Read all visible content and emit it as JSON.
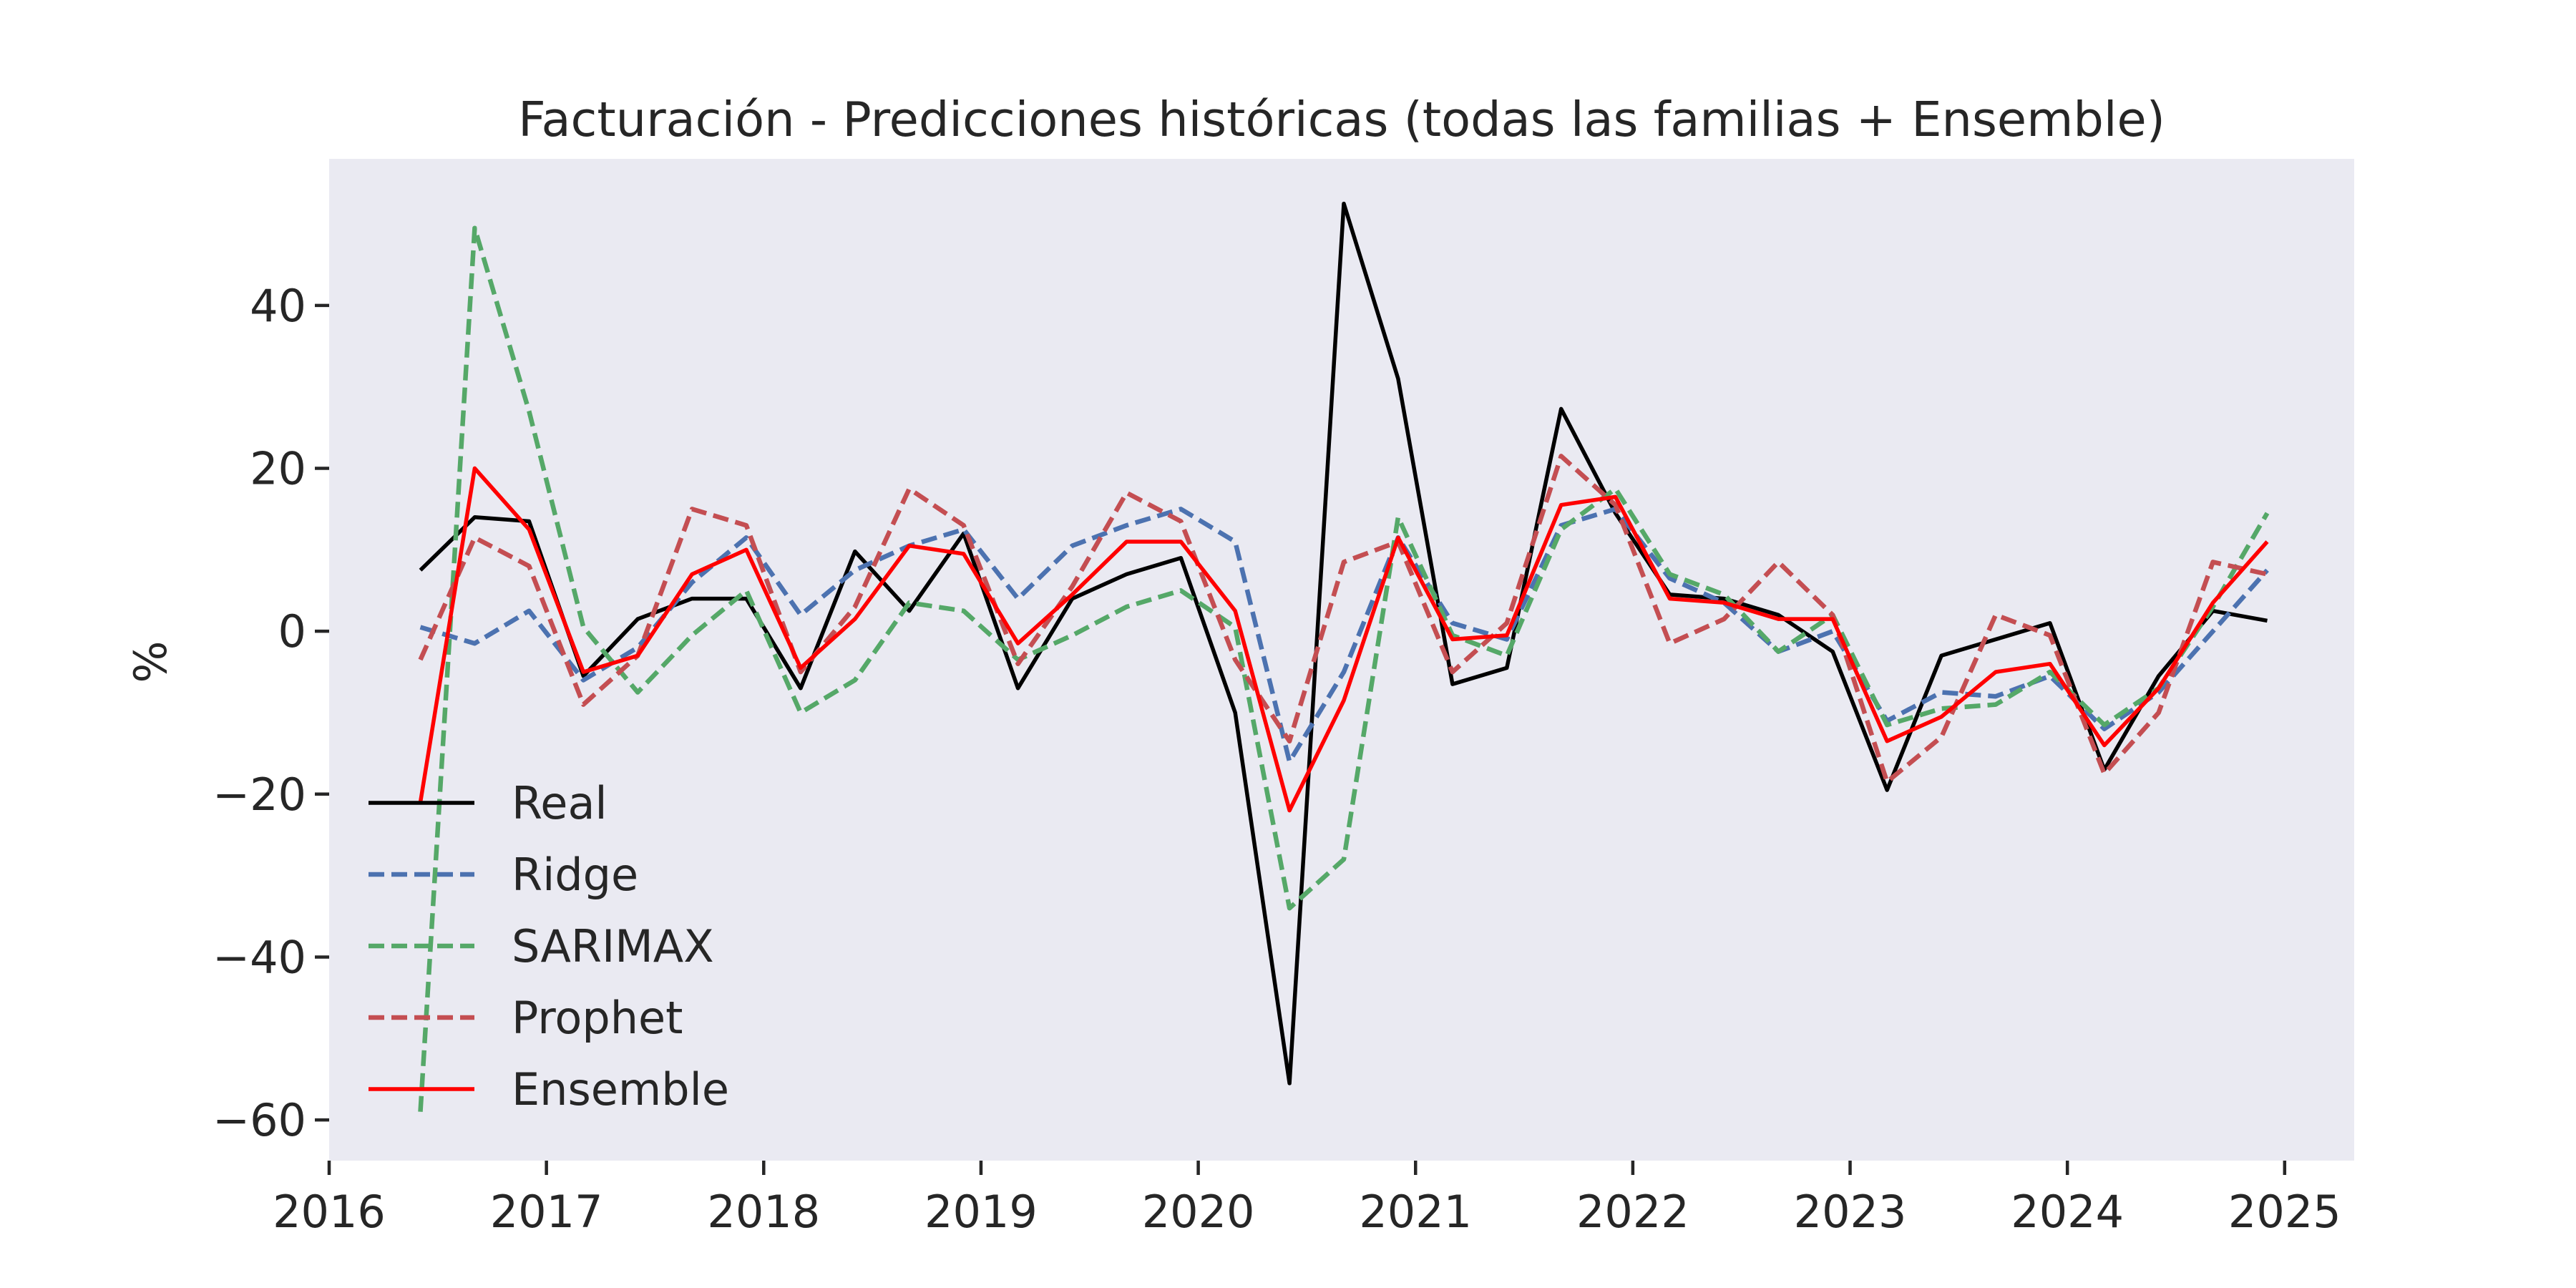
{
  "chart_data": {
    "type": "line",
    "title": "Facturación - Predicciones históricas (todas las familias + Ensemble)",
    "xlabel": "",
    "ylabel": "%",
    "xlim": [
      2016.0,
      2025.32
    ],
    "ylim": [
      -65,
      58
    ],
    "x_ticks": [
      2016,
      2017,
      2018,
      2019,
      2020,
      2021,
      2022,
      2023,
      2024,
      2025
    ],
    "x_tick_labels": [
      "2016",
      "2017",
      "2018",
      "2019",
      "2020",
      "2021",
      "2022",
      "2023",
      "2024",
      "2025"
    ],
    "y_ticks": [
      -60,
      -40,
      -20,
      0,
      20,
      40
    ],
    "y_tick_labels": [
      "−60",
      "−40",
      "−20",
      "0",
      "20",
      "40"
    ],
    "grid": false,
    "background": "#eaeaf2",
    "legend": {
      "position": "lower-left"
    },
    "x": [
      2016.42,
      2016.67,
      2016.92,
      2017.17,
      2017.42,
      2017.67,
      2017.92,
      2018.17,
      2018.42,
      2018.67,
      2018.92,
      2019.17,
      2019.42,
      2019.67,
      2019.92,
      2020.17,
      2020.42,
      2020.67,
      2020.92,
      2021.17,
      2021.42,
      2021.67,
      2021.92,
      2022.17,
      2022.42,
      2022.67,
      2022.92,
      2023.17,
      2023.42,
      2023.67,
      2023.92,
      2024.17,
      2024.42,
      2024.67,
      2024.92
    ],
    "series": [
      {
        "name": "Real",
        "color": "#000000",
        "dash": "solid",
        "values": [
          7.5,
          14.0,
          13.5,
          -5.5,
          1.5,
          4.0,
          4.0,
          -7.0,
          9.8,
          2.5,
          12.0,
          -7.0,
          4.0,
          7.0,
          9.0,
          -10.0,
          -55.5,
          52.5,
          31.0,
          -6.5,
          -4.5,
          27.3,
          14.5,
          4.5,
          4.0,
          2.0,
          -2.5,
          -19.5,
          -3.0,
          -1.0,
          1.0,
          -17.0,
          -5.5,
          2.5,
          1.3
        ]
      },
      {
        "name": "Ridge",
        "color": "#4c72b0",
        "dash": "dashed",
        "values": [
          0.5,
          -1.5,
          2.5,
          -6.0,
          -2.0,
          6.0,
          11.5,
          2.0,
          7.5,
          10.5,
          12.5,
          4.0,
          10.5,
          13.0,
          15.0,
          11.0,
          -16.0,
          -5.0,
          11.5,
          1.0,
          -1.0,
          13.0,
          15.0,
          6.5,
          3.5,
          -2.5,
          0.0,
          -11.0,
          -7.5,
          -8.0,
          -5.5,
          -12.0,
          -7.5,
          0.0,
          7.5
        ]
      },
      {
        "name": "SARIMAX",
        "color": "#55a868",
        "dash": "dashed",
        "values": [
          -59.0,
          49.5,
          27.0,
          0.5,
          -7.5,
          -0.5,
          5.0,
          -10.0,
          -6.0,
          3.5,
          2.5,
          -3.5,
          -0.5,
          3.0,
          5.0,
          0.5,
          -34.0,
          -28.0,
          14.0,
          -0.5,
          -3.0,
          12.5,
          17.5,
          7.0,
          4.5,
          -2.5,
          2.0,
          -11.5,
          -9.5,
          -9.0,
          -5.0,
          -11.5,
          -7.0,
          3.0,
          14.5
        ]
      },
      {
        "name": "Prophet",
        "color": "#c44e52",
        "dash": "dashed",
        "values": [
          -3.5,
          11.5,
          8.0,
          -9.0,
          -3.0,
          15.0,
          13.0,
          -5.0,
          3.0,
          17.5,
          13.0,
          -4.0,
          5.5,
          17.0,
          13.5,
          -3.5,
          -13.5,
          8.5,
          11.0,
          -5.0,
          1.0,
          21.5,
          15.5,
          -1.5,
          1.5,
          8.5,
          2.0,
          -18.5,
          -13.0,
          2.0,
          -0.5,
          -17.5,
          -10.0,
          8.5,
          7.0
        ]
      },
      {
        "name": "Ensemble",
        "color": "#ff0000",
        "dash": "solid",
        "values": [
          -21.0,
          20.0,
          12.5,
          -5.0,
          -3.0,
          7.0,
          10.0,
          -4.5,
          1.5,
          10.5,
          9.5,
          -1.5,
          4.5,
          11.0,
          11.0,
          2.5,
          -22.0,
          -8.5,
          11.5,
          -1.0,
          -0.5,
          15.5,
          16.5,
          4.0,
          3.5,
          1.5,
          1.5,
          -13.5,
          -10.5,
          -5.0,
          -4.0,
          -14.0,
          -7.0,
          3.5,
          11.0
        ]
      }
    ]
  }
}
